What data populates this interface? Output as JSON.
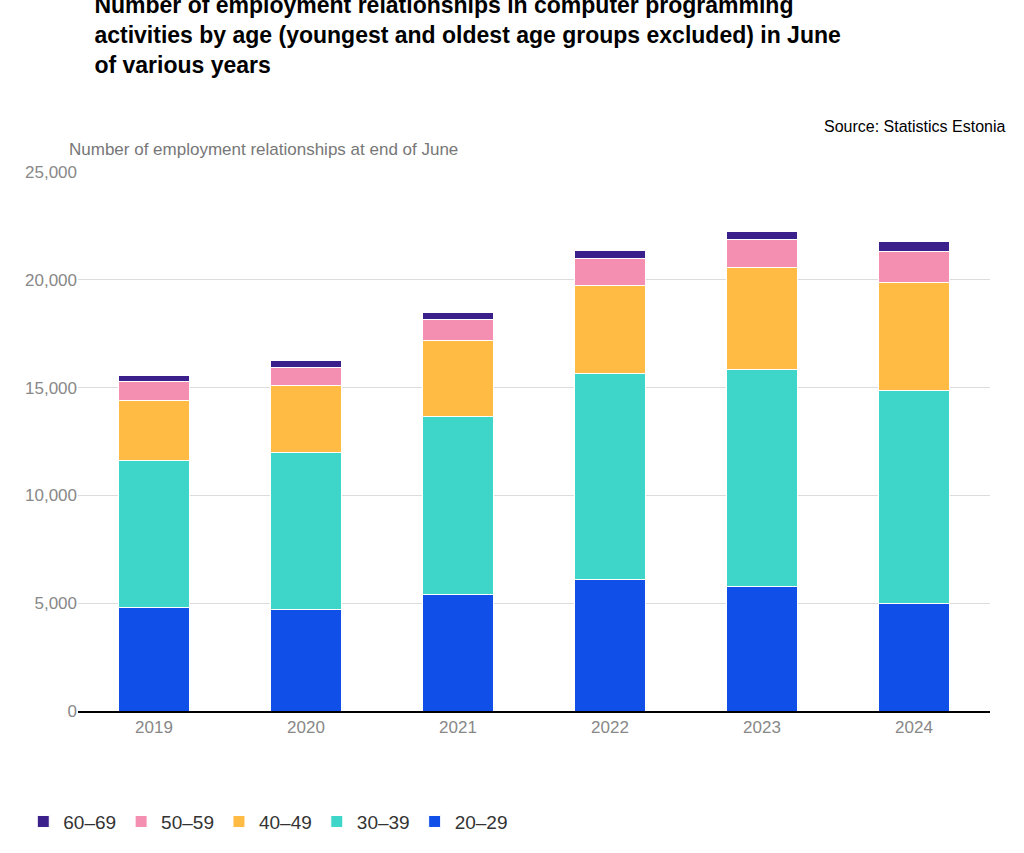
{
  "chart_data": {
    "type": "bar",
    "title": "Number of employment relationships in computer programming activities by age (youngest and oldest age groups excluded) in June of various years",
    "subtitle": "Source: Statistics Estonia",
    "y_label": "Number of employment relationships at end of June",
    "categories": [
      "2019",
      "2020",
      "2021",
      "2022",
      "2023",
      "2024"
    ],
    "series": [
      {
        "name": "20–29",
        "color": "#1150e8",
        "values": [
          4800,
          4700,
          5400,
          6100,
          5770,
          5000
        ]
      },
      {
        "name": "30–39",
        "color": "#3dd6c9",
        "values": [
          6840,
          7300,
          8280,
          9540,
          10090,
          9860
        ]
      },
      {
        "name": "40–49",
        "color": "#ffbb44",
        "values": [
          2770,
          3090,
          3500,
          4090,
          4690,
          5000
        ]
      },
      {
        "name": "50–59",
        "color": "#f48fb1",
        "values": [
          860,
          860,
          1000,
          1270,
          1310,
          1460
        ]
      },
      {
        "name": "60–69",
        "color": "#3b1f8a",
        "values": [
          280,
          320,
          320,
          360,
          370,
          450
        ]
      }
    ],
    "stacked": true,
    "ylim": [
      0,
      25000
    ],
    "yticks": [
      0,
      {
        "value": 5000,
        "label": "5,000"
      },
      {
        "value": 10000,
        "label": "10,000"
      },
      {
        "value": 15000,
        "label": "15,000"
      },
      {
        "value": 20000,
        "label": "20,000"
      },
      {
        "value": 25000,
        "label": "25,000"
      }
    ],
    "grid": true,
    "legend": "bottom"
  }
}
